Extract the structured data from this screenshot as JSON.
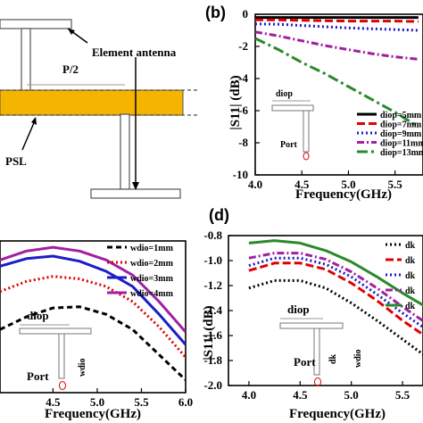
{
  "panel_a": {
    "element_antenna_label": "Element antenna",
    "half_period_label": "P/2",
    "psl_label": "PSL",
    "strip_color": "#f5b400"
  },
  "panel_b": {
    "label": "(b)",
    "inset_diop": "diop",
    "inset_port": "Port"
  },
  "panel_c": {
    "inset_diop": "diop",
    "inset_port": "Port",
    "inset_wdio": "wdio"
  },
  "panel_d": {
    "label": "(d)",
    "inset_diop": "diop",
    "inset_port": "Port",
    "inset_dk": "dk",
    "inset_wdio": "wdio"
  },
  "chart_data": [
    {
      "id": "b",
      "type": "line",
      "xlabel": "Frequency(GHz)",
      "ylabel": "|S11| (dB)",
      "xlim": [
        4.0,
        5.8
      ],
      "ylim": [
        -10,
        0
      ],
      "xticks": [
        "4.0",
        "4.5",
        "5.0",
        "5.5"
      ],
      "yticks": [
        "0",
        "-2",
        "-4",
        "-6",
        "-8",
        "-10"
      ],
      "legend": "right",
      "x": [
        4.0,
        4.25,
        4.5,
        4.75,
        5.0,
        5.25,
        5.5,
        5.75
      ],
      "series": [
        {
          "name": "diop=5mm",
          "color": "#000000",
          "dash": "solid",
          "values": [
            -0.2,
            -0.2,
            -0.2,
            -0.2,
            -0.2,
            -0.2,
            -0.2,
            -0.2
          ]
        },
        {
          "name": "diop=7mm",
          "color": "#e00000",
          "dash": "longdash",
          "values": [
            -0.35,
            -0.35,
            -0.38,
            -0.4,
            -0.42,
            -0.42,
            -0.42,
            -0.45
          ]
        },
        {
          "name": "diop=9mm",
          "color": "#1c1cc8",
          "dash": "dot",
          "values": [
            -0.6,
            -0.62,
            -0.7,
            -0.78,
            -0.85,
            -0.9,
            -0.95,
            -1.0
          ]
        },
        {
          "name": "diop=11mm",
          "color": "#a020a0",
          "dash": "dashdot",
          "values": [
            -1.1,
            -1.35,
            -1.65,
            -1.95,
            -2.2,
            -2.45,
            -2.65,
            -2.8
          ]
        },
        {
          "name": "diop=13mm",
          "color": "#2a8a2a",
          "dash": "dashdotlong",
          "values": [
            -1.5,
            -2.2,
            -3.0,
            -3.7,
            -4.5,
            -5.3,
            -6.1,
            -7.0
          ]
        }
      ]
    },
    {
      "id": "c",
      "type": "line",
      "xlabel": "Frequency(GHz)",
      "ylabel": "",
      "xlim": [
        3.9,
        6.0
      ],
      "ylim": [
        -2.0,
        -0.8
      ],
      "xticks": [
        "4.5",
        "5.0",
        "5.5",
        "6.0"
      ],
      "legend": "top-right",
      "x": [
        3.9,
        4.2,
        4.5,
        4.8,
        5.1,
        5.4,
        5.7,
        6.0
      ],
      "series": [
        {
          "name": "wdio=1mm",
          "color": "#000000",
          "dash": "dash",
          "values": [
            -1.5,
            -1.4,
            -1.33,
            -1.32,
            -1.38,
            -1.5,
            -1.7,
            -1.9
          ]
        },
        {
          "name": "wdio=2mm",
          "color": "#e00000",
          "dash": "dot",
          "values": [
            -1.2,
            -1.12,
            -1.08,
            -1.1,
            -1.16,
            -1.28,
            -1.48,
            -1.72
          ]
        },
        {
          "name": "wdio=3mm",
          "color": "#1c1cc8",
          "dash": "solid",
          "values": [
            -1.0,
            -0.94,
            -0.92,
            -0.96,
            -1.04,
            -1.16,
            -1.38,
            -1.62
          ]
        },
        {
          "name": "wdio=4mm",
          "color": "#a020a0",
          "dash": "solid",
          "values": [
            -0.95,
            -0.88,
            -0.85,
            -0.88,
            -0.95,
            -1.07,
            -1.28,
            -1.52
          ]
        }
      ]
    },
    {
      "id": "d",
      "type": "line",
      "xlabel": "Frequency(GHz)",
      "ylabel": "|S11| (dB)",
      "xlim": [
        3.8,
        5.7
      ],
      "ylim": [
        -2.0,
        -0.8
      ],
      "xticks": [
        "4.0",
        "4.5",
        "5.0",
        "5.5"
      ],
      "yticks": [
        "-0.8",
        "-1.0",
        "-1.2",
        "-1.4",
        "-1.6",
        "-1.8",
        "-2.0"
      ],
      "legend": "top-right",
      "x": [
        4.0,
        4.25,
        4.5,
        4.75,
        5.0,
        5.25,
        5.5,
        5.75
      ],
      "series": [
        {
          "name": "dk",
          "color": "#000000",
          "dash": "dot",
          "values": [
            -1.22,
            -1.16,
            -1.16,
            -1.22,
            -1.34,
            -1.48,
            -1.63,
            -1.78
          ]
        },
        {
          "name": "dk",
          "color": "#e00000",
          "dash": "longdash",
          "values": [
            -1.08,
            -1.02,
            -1.02,
            -1.07,
            -1.18,
            -1.32,
            -1.48,
            -1.62
          ]
        },
        {
          "name": "dk",
          "color": "#1c1cc8",
          "dash": "dot",
          "values": [
            -1.04,
            -0.98,
            -0.98,
            -1.03,
            -1.13,
            -1.27,
            -1.42,
            -1.56
          ]
        },
        {
          "name": "dk",
          "color": "#a020a0",
          "dash": "dashdot",
          "values": [
            -0.98,
            -0.94,
            -0.94,
            -0.99,
            -1.09,
            -1.22,
            -1.37,
            -1.51
          ]
        },
        {
          "name": "dk",
          "color": "#2a8a2a",
          "dash": "solid",
          "values": [
            -0.86,
            -0.84,
            -0.86,
            -0.92,
            -1.01,
            -1.13,
            -1.26,
            -1.38
          ]
        }
      ]
    }
  ]
}
